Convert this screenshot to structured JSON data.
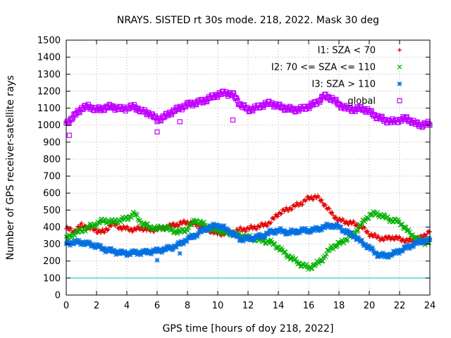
{
  "chart_data": {
    "type": "scatter",
    "title": "NRAYS. SISTED rt 30s mode. 218, 2022. Mask 30 deg",
    "xlabel": "GPS time [hours of doy 218, 2022]",
    "ylabel": "Number of GPS receiver-satellite rays",
    "xlim": [
      0,
      24
    ],
    "ylim": [
      0,
      1500
    ],
    "xticks": [
      "0",
      "2",
      "4",
      "6",
      "8",
      "10",
      "12",
      "14",
      "16",
      "18",
      "20",
      "22",
      "24"
    ],
    "yticks": [
      "0",
      "100",
      "200",
      "300",
      "400",
      "500",
      "600",
      "700",
      "800",
      "900",
      "1000",
      "1100",
      "1200",
      "1300",
      "1400",
      "1500"
    ],
    "grid": true,
    "legend_position": "top-right",
    "reference_line": {
      "y": 100,
      "color": "#00c0c0"
    },
    "series": [
      {
        "name": "I1: SZA < 70",
        "marker": "+",
        "color": "#e00000",
        "x": [
          0,
          0.5,
          1,
          1.5,
          2,
          2.5,
          3,
          3.5,
          4,
          4.5,
          5,
          5.5,
          6,
          6.5,
          7,
          7.5,
          8,
          8.5,
          9,
          9.5,
          10,
          10.5,
          11,
          11.5,
          12,
          12.5,
          13,
          13.5,
          14,
          14.5,
          15,
          15.5,
          16,
          16.5,
          17,
          17.5,
          18,
          18.5,
          19,
          19.5,
          20,
          20.5,
          21,
          21.5,
          22,
          22.5,
          23,
          23.5,
          24
        ],
        "values": [
          390,
          375,
          410,
          395,
          380,
          370,
          420,
          400,
          390,
          385,
          395,
          380,
          390,
          395,
          410,
          420,
          430,
          415,
          400,
          380,
          360,
          365,
          370,
          385,
          390,
          400,
          410,
          430,
          480,
          500,
          520,
          540,
          570,
          580,
          540,
          480,
          440,
          430,
          420,
          400,
          360,
          340,
          330,
          340,
          330,
          320,
          320,
          340,
          380
        ]
      },
      {
        "name": "I2: 70 <= SZA <= 110",
        "marker": "x",
        "color": "#00b000",
        "x": [
          0,
          0.5,
          1,
          1.5,
          2,
          2.5,
          3,
          3.5,
          4,
          4.5,
          5,
          5.5,
          6,
          6.5,
          7,
          7.5,
          8,
          8.5,
          9,
          9.5,
          10,
          10.5,
          11,
          11.5,
          12,
          12.5,
          13,
          13.5,
          14,
          14.5,
          15,
          15.5,
          16,
          16.5,
          17,
          17.5,
          18,
          18.5,
          19,
          19.5,
          20,
          20.5,
          21,
          21.5,
          22,
          22.5,
          23,
          23.5,
          24
        ],
        "values": [
          330,
          360,
          380,
          400,
          420,
          440,
          430,
          440,
          450,
          480,
          420,
          400,
          390,
          400,
          380,
          370,
          390,
          440,
          420,
          390,
          380,
          370,
          360,
          350,
          340,
          330,
          320,
          310,
          280,
          240,
          210,
          180,
          160,
          180,
          220,
          280,
          300,
          330,
          360,
          420,
          470,
          480,
          460,
          440,
          430,
          380,
          340,
          310,
          310
        ]
      },
      {
        "name": "I3: SZA > 110",
        "marker": "*",
        "color": "#0070e0",
        "x": [
          0,
          0.5,
          1,
          1.5,
          2,
          2.5,
          3,
          3.5,
          4,
          4.5,
          5,
          5.5,
          6,
          6.5,
          7,
          7.5,
          8,
          8.5,
          9,
          9.5,
          10,
          10.5,
          11,
          11.5,
          12,
          12.5,
          13,
          13.5,
          14,
          14.5,
          15,
          15.5,
          16,
          16.5,
          17,
          17.5,
          18,
          18.5,
          19,
          19.5,
          20,
          20.5,
          21,
          21.5,
          22,
          22.5,
          23,
          23.5,
          24
        ],
        "values": [
          305,
          310,
          310,
          300,
          290,
          270,
          260,
          250,
          245,
          250,
          250,
          255,
          260,
          270,
          280,
          300,
          330,
          350,
          380,
          400,
          410,
          390,
          360,
          330,
          330,
          340,
          350,
          370,
          380,
          370,
          370,
          380,
          380,
          385,
          400,
          410,
          400,
          370,
          350,
          310,
          280,
          240,
          230,
          240,
          260,
          280,
          300,
          320,
          320
        ],
        "outliers_x": [
          6,
          7.5
        ],
        "outliers_y": [
          205,
          245
        ]
      },
      {
        "name": "global",
        "marker": "□",
        "color": "#c000ff",
        "x": [
          0,
          0.5,
          1,
          1.5,
          2,
          2.5,
          3,
          3.5,
          4,
          4.5,
          5,
          5.5,
          6,
          6.5,
          7,
          7.5,
          8,
          8.5,
          9,
          9.5,
          10,
          10.5,
          11,
          11.5,
          12,
          12.5,
          13,
          13.5,
          14,
          14.5,
          15,
          15.5,
          16,
          16.5,
          17,
          17.5,
          18,
          18.5,
          19,
          19.5,
          20,
          20.5,
          21,
          21.5,
          22,
          22.5,
          23,
          23.5,
          24
        ],
        "values": [
          1010,
          1050,
          1100,
          1110,
          1090,
          1100,
          1110,
          1095,
          1100,
          1110,
          1080,
          1070,
          1030,
          1050,
          1080,
          1100,
          1120,
          1130,
          1140,
          1160,
          1180,
          1190,
          1180,
          1120,
          1090,
          1100,
          1120,
          1130,
          1110,
          1100,
          1090,
          1095,
          1110,
          1130,
          1170,
          1160,
          1120,
          1100,
          1090,
          1100,
          1080,
          1050,
          1030,
          1020,
          1030,
          1040,
          1010,
          1000,
          1010
        ],
        "outliers_x": [
          0.2,
          6,
          7.5,
          11
        ],
        "outliers_y": [
          940,
          960,
          1020,
          1030
        ]
      }
    ]
  }
}
